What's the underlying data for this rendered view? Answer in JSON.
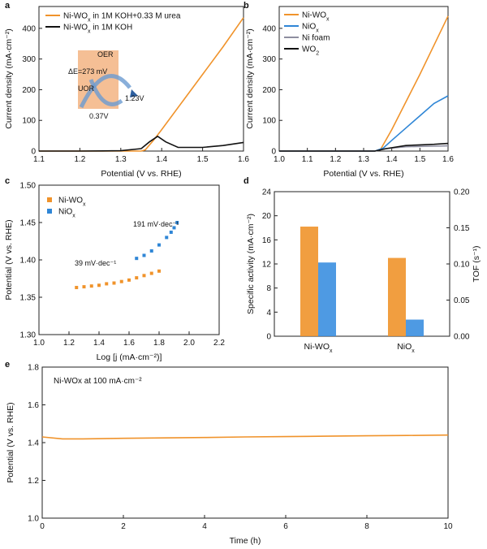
{
  "chart_data": [
    {
      "panel": "a",
      "type": "line",
      "xlabel": "Potential (V vs. RHE)",
      "ylabel": "Current density (mA·cm⁻²)",
      "xlim": [
        1.1,
        1.6
      ],
      "ylim": [
        0,
        450
      ],
      "xticks": [
        1.1,
        1.2,
        1.3,
        1.4,
        1.5,
        1.6
      ],
      "yticks": [
        0,
        100,
        200,
        300,
        400
      ],
      "legend_position": "top-left",
      "series": [
        {
          "name": "Ni-WOx in 1M KOH+0.33 M urea",
          "color": "#f0932b",
          "x": [
            1.1,
            1.3,
            1.35,
            1.36,
            1.38,
            1.4,
            1.45,
            1.5,
            1.55,
            1.6
          ],
          "y": [
            0,
            0,
            0,
            4,
            35,
            70,
            160,
            250,
            340,
            435
          ]
        },
        {
          "name": "Ni-WOx in 1M KOH",
          "color": "#111111",
          "x": [
            1.1,
            1.2,
            1.3,
            1.35,
            1.37,
            1.39,
            1.41,
            1.44,
            1.5,
            1.55,
            1.6
          ],
          "y": [
            0,
            0,
            1,
            8,
            30,
            48,
            30,
            12,
            12,
            18,
            28
          ]
        }
      ],
      "inset": {
        "labels": [
          "OER",
          "UOR"
        ],
        "delta": "ΔE=273 mV",
        "left_value": "0.37V",
        "right_value": "1.23V"
      }
    },
    {
      "panel": "b",
      "type": "line",
      "xlabel": "Potential (V vs. RHE)",
      "ylabel": "Current density (mA·cm⁻²)",
      "xlim": [
        1.0,
        1.6
      ],
      "ylim": [
        0,
        450
      ],
      "xticks": [
        1.0,
        1.1,
        1.2,
        1.3,
        1.4,
        1.5,
        1.6
      ],
      "yticks": [
        0,
        100,
        200,
        300,
        400
      ],
      "legend_position": "top-left",
      "series": [
        {
          "name": "Ni-WOx",
          "color": "#f0932b",
          "x": [
            1.0,
            1.34,
            1.36,
            1.4,
            1.45,
            1.5,
            1.55,
            1.6
          ],
          "y": [
            0,
            0,
            5,
            70,
            160,
            250,
            345,
            440
          ]
        },
        {
          "name": "NiOx",
          "color": "#2f86d6",
          "x": [
            1.0,
            1.34,
            1.37,
            1.4,
            1.45,
            1.5,
            1.55,
            1.6
          ],
          "y": [
            0,
            0,
            10,
            35,
            75,
            115,
            155,
            180
          ]
        },
        {
          "name": "Ni foam",
          "color": "#8e8ea0",
          "x": [
            1.0,
            1.34,
            1.38,
            1.45,
            1.5,
            1.55,
            1.6
          ],
          "y": [
            0,
            0,
            8,
            14,
            15,
            16,
            17
          ]
        },
        {
          "name": "WO2",
          "color": "#111111",
          "x": [
            1.0,
            1.34,
            1.38,
            1.45,
            1.5,
            1.55,
            1.6
          ],
          "y": [
            0,
            0,
            8,
            18,
            20,
            22,
            25
          ]
        }
      ]
    },
    {
      "panel": "c",
      "type": "scatter",
      "xlabel": "Log [j (mA·cm⁻²)]",
      "ylabel": "Potential (V vs. RHE)",
      "xlim": [
        1.0,
        2.2
      ],
      "ylim": [
        1.3,
        1.5
      ],
      "xticks": [
        1.0,
        1.2,
        1.4,
        1.6,
        1.8,
        2.0,
        2.2
      ],
      "yticks": [
        1.3,
        1.35,
        1.4,
        1.45,
        1.5
      ],
      "legend_position": "top-left",
      "series": [
        {
          "name": "Ni-WOx",
          "color": "#f0932b",
          "x": [
            1.25,
            1.3,
            1.35,
            1.4,
            1.45,
            1.5,
            1.55,
            1.6,
            1.65,
            1.7,
            1.75,
            1.8
          ],
          "y": [
            1.363,
            1.364,
            1.365,
            1.366,
            1.368,
            1.369,
            1.371,
            1.373,
            1.376,
            1.379,
            1.382,
            1.385
          ],
          "slope_label": "39 mV·dec⁻¹"
        },
        {
          "name": "NiOx",
          "color": "#2f86d6",
          "x": [
            1.65,
            1.7,
            1.75,
            1.8,
            1.85,
            1.88,
            1.9,
            1.92
          ],
          "y": [
            1.402,
            1.406,
            1.412,
            1.42,
            1.43,
            1.437,
            1.443,
            1.45
          ],
          "slope_label": "191 mV·dec⁻¹"
        }
      ]
    },
    {
      "panel": "d",
      "type": "bar",
      "categories": [
        "Ni-WOx",
        "NiOx"
      ],
      "ylabel_left": "Specific activity (mA·cm⁻²)",
      "ylabel_right": "TOF (s⁻¹)",
      "ylim_left": [
        0,
        24
      ],
      "ylim_right": [
        0,
        0.2
      ],
      "yticks_left": [
        0,
        4,
        8,
        12,
        16,
        20,
        24
      ],
      "yticks_right": [
        "0.00",
        "0.05",
        "0.10",
        "0.15",
        "0.20"
      ],
      "series": [
        {
          "name": "Specific activity",
          "axis": "left",
          "color": "#f0932b",
          "values": [
            18.2,
            13.0
          ]
        },
        {
          "name": "TOF",
          "axis": "right",
          "color": "#3b8fe0",
          "values": [
            0.102,
            0.023
          ]
        }
      ]
    },
    {
      "panel": "e",
      "type": "line",
      "xlabel": "Time (h)",
      "ylabel": "Potential (V vs. RHE)",
      "xlim": [
        0,
        10
      ],
      "ylim": [
        1.0,
        1.8
      ],
      "xticks": [
        0,
        2,
        4,
        6,
        8,
        10
      ],
      "yticks": [
        1.0,
        1.2,
        1.4,
        1.6,
        1.8
      ],
      "annotation": "Ni-WOx at 100 mA·cm⁻²",
      "series": [
        {
          "name": "Ni-WOx",
          "color": "#f0932b",
          "x": [
            0,
            0.5,
            1,
            2,
            3,
            4,
            5,
            6,
            7,
            8,
            9,
            10
          ],
          "y": [
            1.43,
            1.42,
            1.42,
            1.423,
            1.425,
            1.427,
            1.43,
            1.432,
            1.434,
            1.436,
            1.438,
            1.44
          ]
        }
      ]
    }
  ]
}
